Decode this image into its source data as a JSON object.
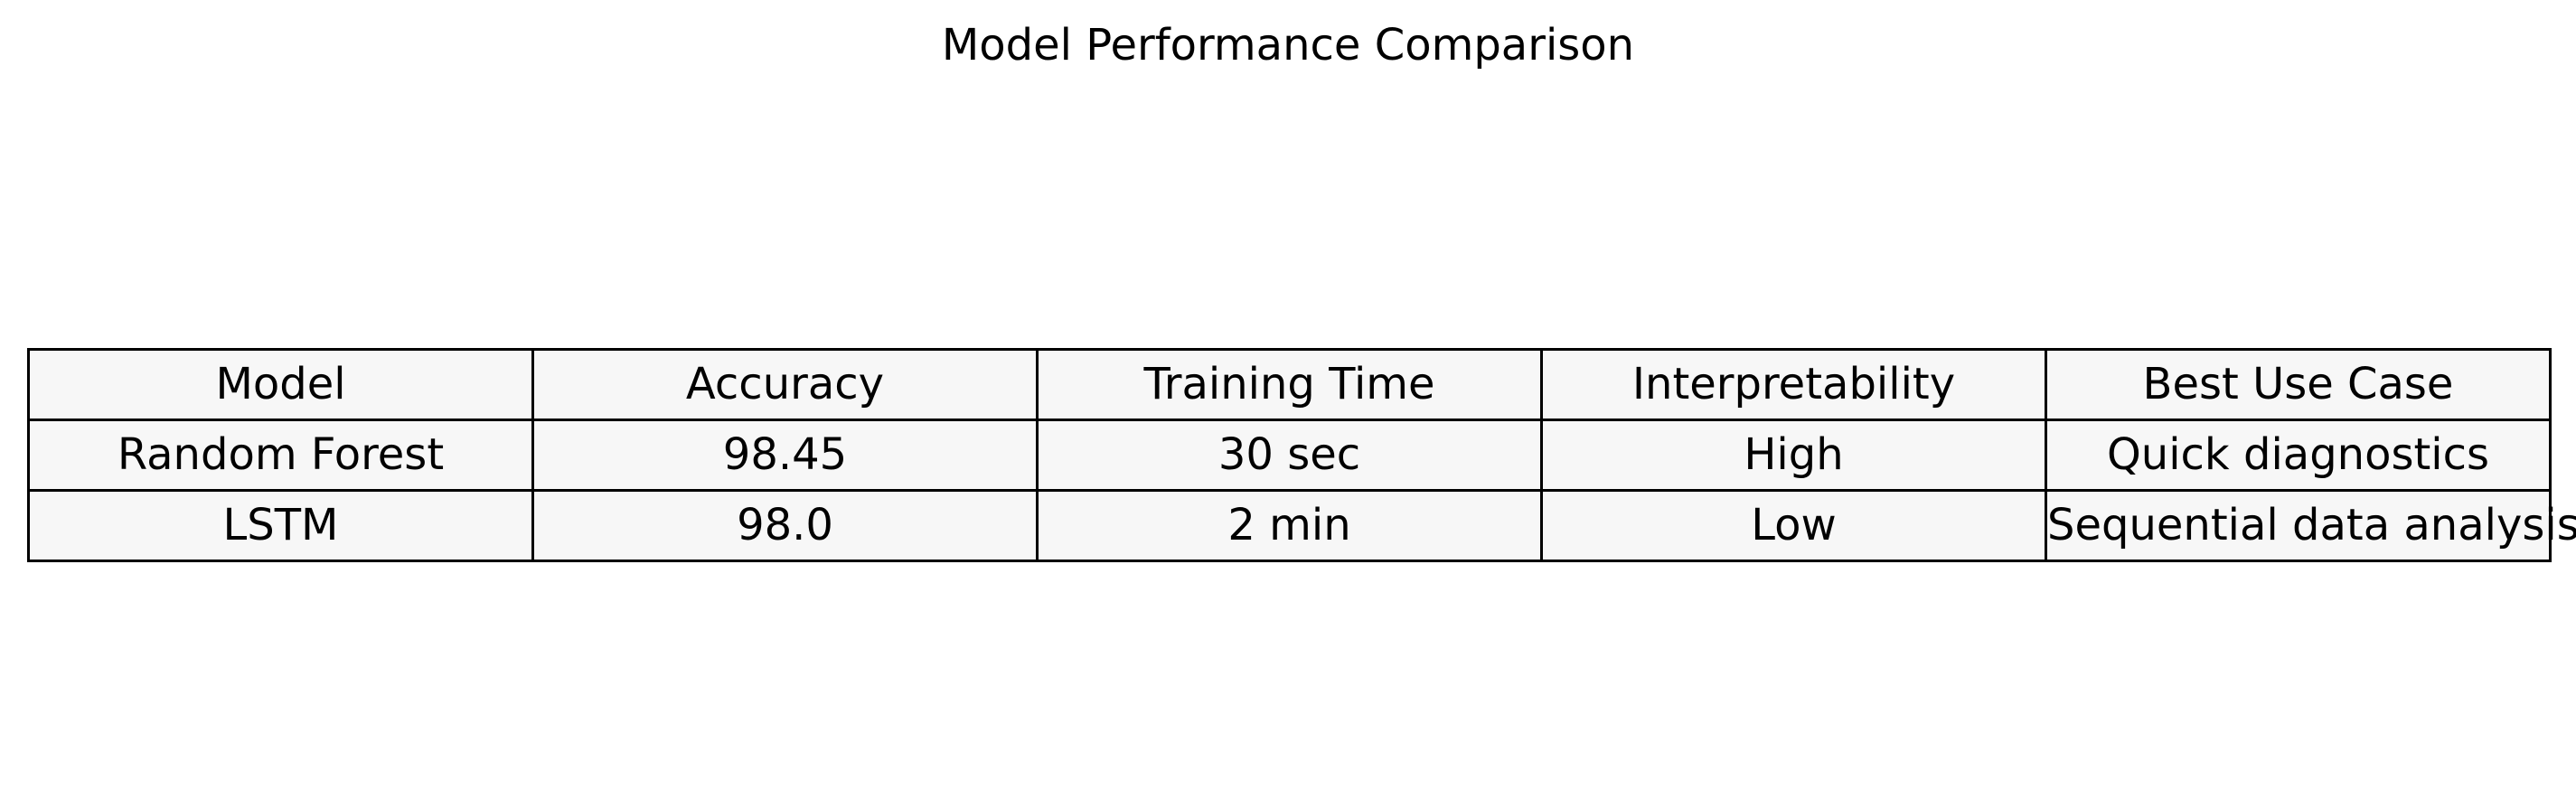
{
  "chart_data": {
    "type": "table",
    "title": "Model Performance Comparison",
    "columns": [
      "Model",
      "Accuracy",
      "Training Time",
      "Interpretability",
      "Best Use Case"
    ],
    "rows": [
      [
        "Random Forest",
        "98.45",
        "30 sec",
        "High",
        "Quick diagnostics"
      ],
      [
        "LSTM",
        "98.0",
        "2 min",
        "Low",
        "Sequential data analysis"
      ]
    ],
    "cell_color": "#f7f7f7",
    "border_color": "#000000"
  }
}
